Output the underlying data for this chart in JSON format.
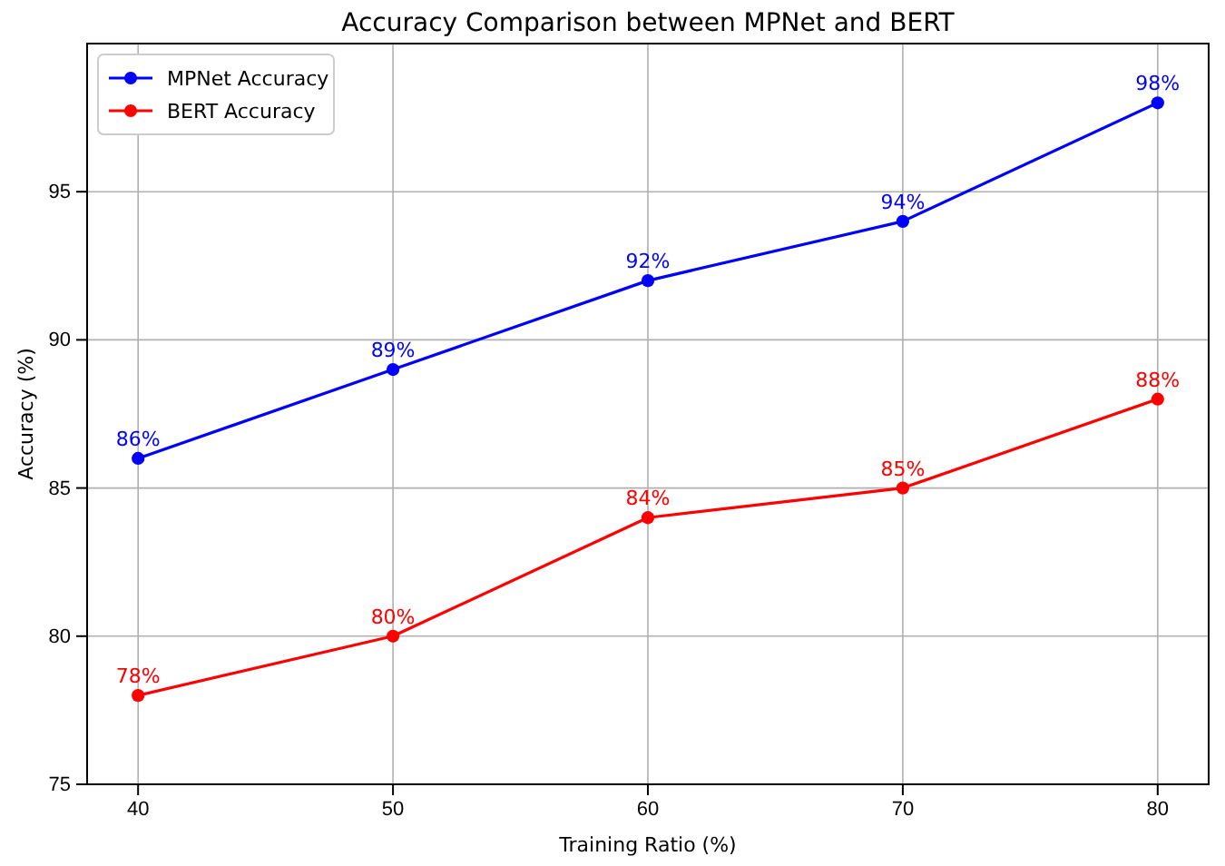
{
  "chart_data": {
    "type": "line",
    "title": "Accuracy Comparison between MPNet and BERT",
    "xlabel": "Training Ratio (%)",
    "ylabel": "Accuracy (%)",
    "x": [
      40,
      50,
      60,
      70,
      80
    ],
    "series": [
      {
        "name": "MPNet Accuracy",
        "color": "#0000ff",
        "values": [
          86,
          89,
          92,
          94,
          98
        ],
        "value_labels": [
          "86%",
          "89%",
          "92%",
          "94%",
          "98%"
        ]
      },
      {
        "name": "BERT Accuracy",
        "color": "#ff0000",
        "values": [
          78,
          80,
          84,
          85,
          88
        ],
        "value_labels": [
          "78%",
          "80%",
          "84%",
          "85%",
          "88%"
        ]
      }
    ],
    "xlim": [
      38,
      82
    ],
    "xticks": [
      40,
      50,
      60,
      70,
      80
    ],
    "ylim": [
      75,
      100
    ],
    "yticks": [
      75,
      80,
      85,
      90,
      95
    ],
    "grid": true,
    "legend": "top left",
    "marker": "circle",
    "line_style": "solid"
  }
}
